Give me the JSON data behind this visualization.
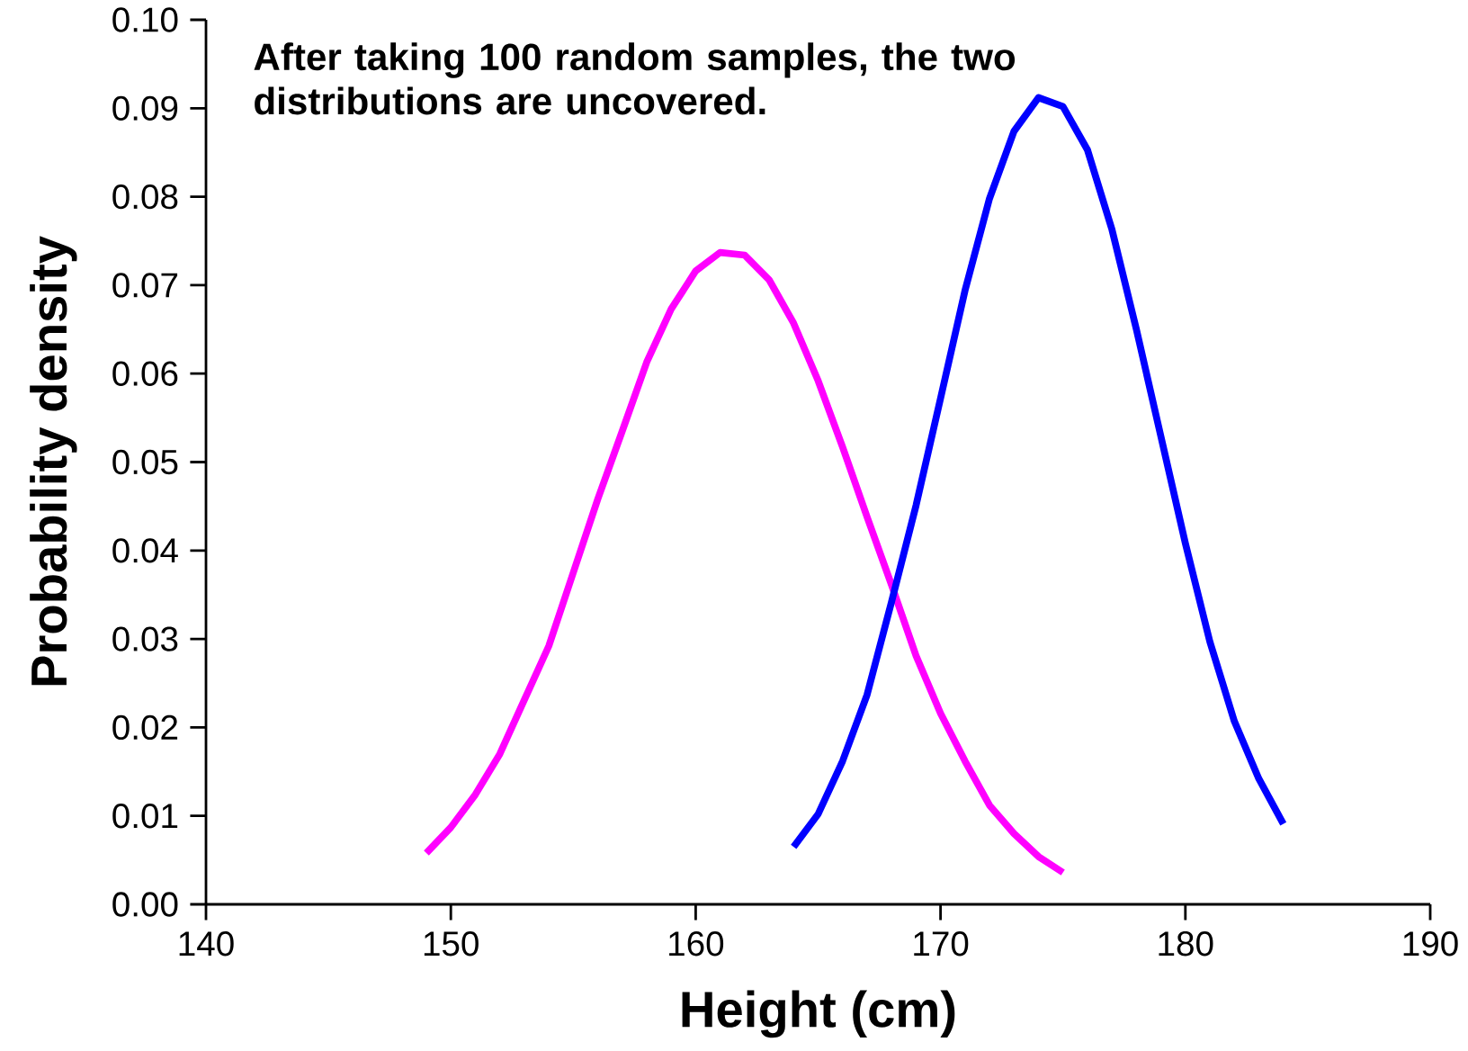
{
  "chart_data": {
    "type": "line",
    "xlabel": "Height (cm)",
    "ylabel": "Probability density",
    "annotations": [
      "After taking 100 random samples, the two distributions are uncovered."
    ],
    "xlim": [
      140,
      190
    ],
    "ylim": [
      0,
      0.1
    ],
    "xticks": [
      140,
      150,
      160,
      170,
      180,
      190
    ],
    "yticks": [
      {
        "value": 0,
        "label": "0.00"
      },
      {
        "value": 0.01,
        "label": "0.01"
      },
      {
        "value": 0.02,
        "label": "0.02"
      },
      {
        "value": 0.03,
        "label": "0.03"
      },
      {
        "value": 0.04,
        "label": "0.04"
      },
      {
        "value": 0.05,
        "label": "0.05"
      },
      {
        "value": 0.06,
        "label": "0.06"
      },
      {
        "value": 0.07,
        "label": "0.07"
      },
      {
        "value": 0.08,
        "label": "0.08"
      },
      {
        "value": 0.09,
        "label": "0.09"
      },
      {
        "value": 0.1,
        "label": "0.10"
      }
    ],
    "series": [
      {
        "color": "#ff00ff",
        "x": [
          149,
          150,
          151,
          152,
          153,
          154,
          155,
          156,
          157,
          158,
          159,
          160,
          161,
          162,
          163,
          164,
          165,
          166,
          167,
          168,
          169,
          170,
          171,
          172,
          173,
          174,
          175
        ],
        "values": [
          0.0058,
          0.0087,
          0.0124,
          0.017,
          0.0231,
          0.0292,
          0.0375,
          0.0458,
          0.0535,
          0.0613,
          0.0673,
          0.0716,
          0.0737,
          0.0734,
          0.0706,
          0.0657,
          0.0592,
          0.0517,
          0.0438,
          0.0361,
          0.0281,
          0.0216,
          0.0162,
          0.0112,
          0.008,
          0.0054,
          0.0036
        ]
      },
      {
        "color": "#0000ff",
        "x": [
          164,
          165,
          166,
          167,
          168,
          169,
          170,
          171,
          172,
          173,
          174,
          175,
          176,
          177,
          178,
          179,
          180,
          181,
          182,
          183,
          184
        ],
        "values": [
          0.0065,
          0.0102,
          0.0162,
          0.0237,
          0.0342,
          0.0451,
          0.0572,
          0.0694,
          0.0798,
          0.0874,
          0.0912,
          0.0902,
          0.0853,
          0.0763,
          0.065,
          0.0529,
          0.0408,
          0.0297,
          0.0207,
          0.0142,
          0.0091
        ]
      }
    ]
  }
}
